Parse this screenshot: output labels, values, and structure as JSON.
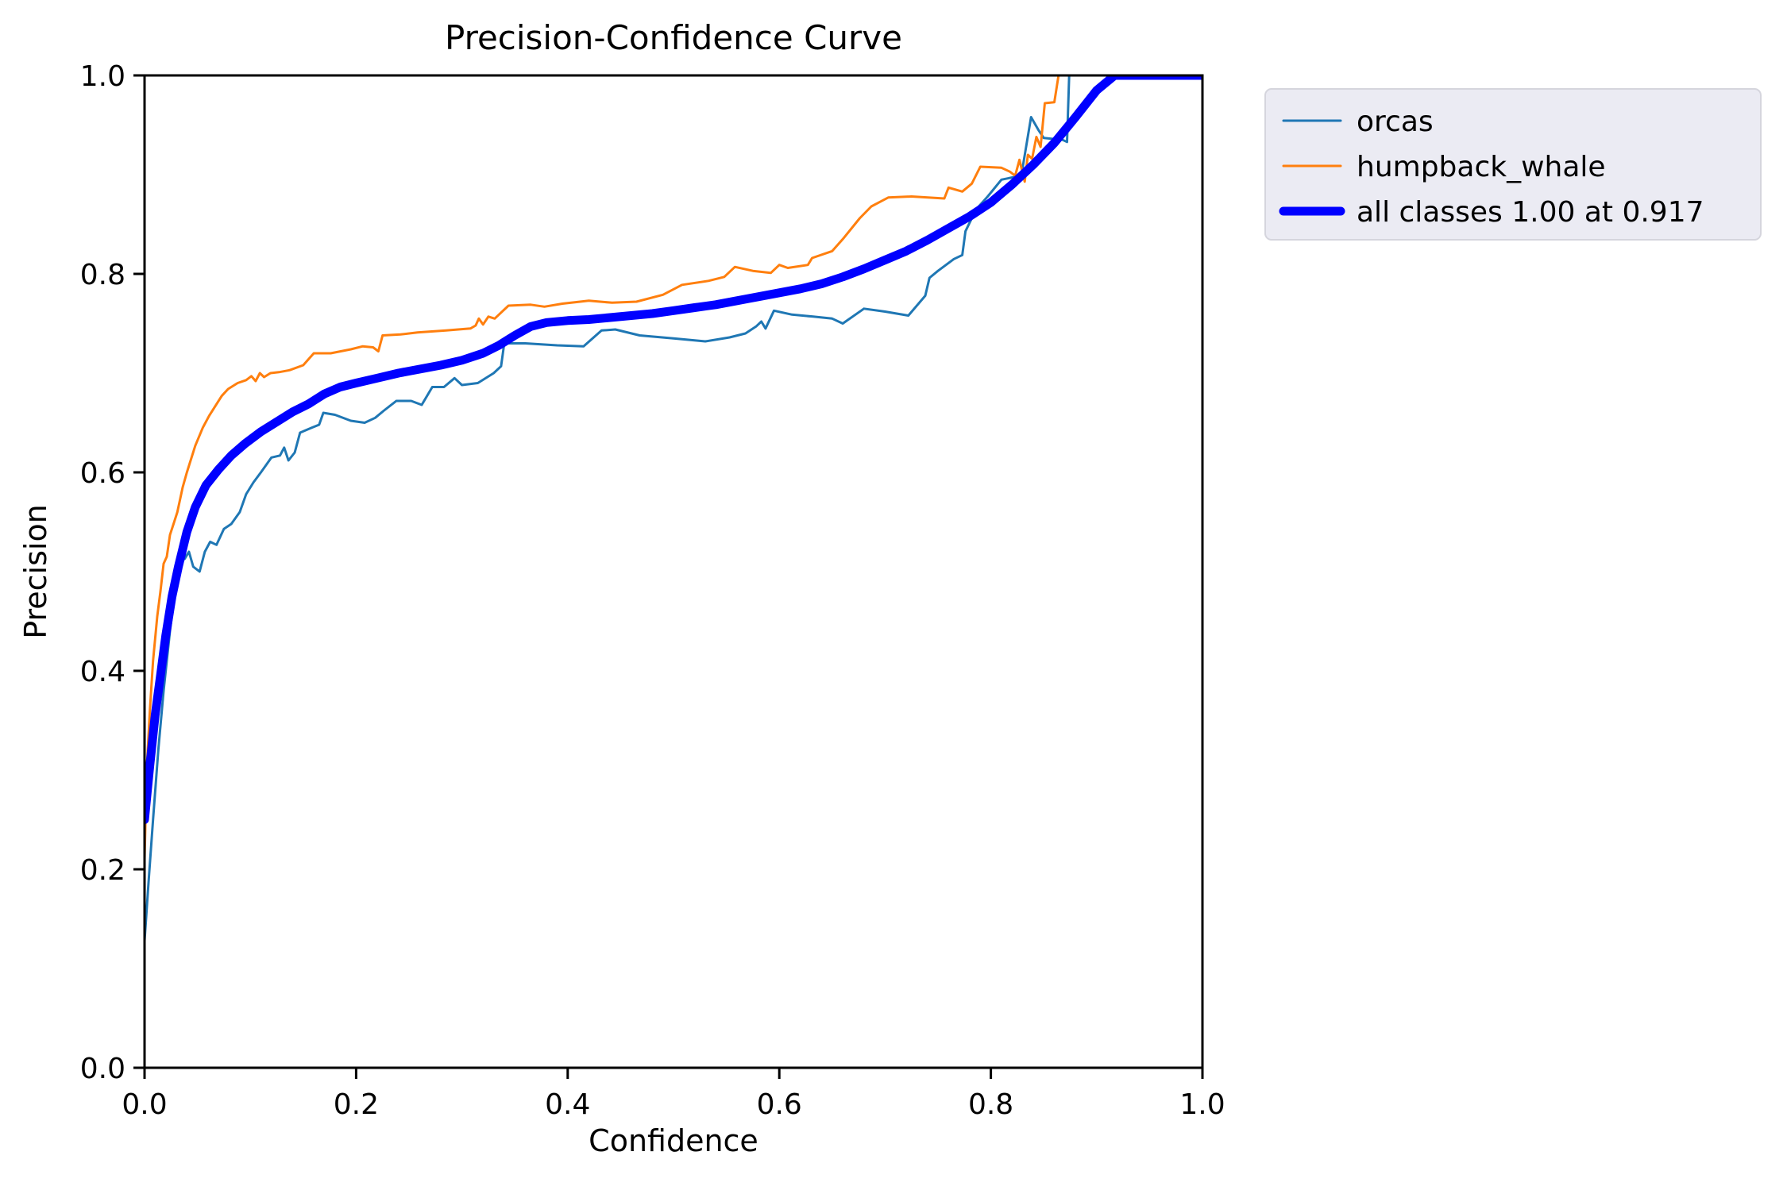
{
  "chart_data": {
    "type": "line",
    "title": "Precision-Confidence Curve",
    "xlabel": "Confidence",
    "ylabel": "Precision",
    "xlim": [
      0.0,
      1.0
    ],
    "ylim": [
      0.0,
      1.0
    ],
    "grid": false,
    "x_tick_values": [
      0.0,
      0.2,
      0.4,
      0.6,
      0.8,
      1.0
    ],
    "x_tick_labels": [
      "0.0",
      "0.2",
      "0.4",
      "0.6",
      "0.8",
      "1.0"
    ],
    "y_tick_values": [
      0.0,
      0.2,
      0.4,
      0.6,
      0.8,
      1.0
    ],
    "y_tick_labels": [
      "0.0",
      "0.2",
      "0.4",
      "0.6",
      "0.8",
      "1.0"
    ],
    "legend_position": "outside-upper-right",
    "legend_bg": "#ebebf3",
    "legend_border": "#d5d5dd",
    "frame_color": "#000000",
    "annotation": "all classes reach precision 1.00 at confidence 0.917",
    "series": [
      {
        "name": "orcas",
        "color": "#1f77b4",
        "line_width": 3,
        "points": [
          [
            0.0,
            0.128
          ],
          [
            0.004,
            0.19
          ],
          [
            0.008,
            0.25
          ],
          [
            0.013,
            0.32
          ],
          [
            0.018,
            0.38
          ],
          [
            0.024,
            0.44
          ],
          [
            0.03,
            0.49
          ],
          [
            0.034,
            0.51
          ],
          [
            0.038,
            0.513
          ],
          [
            0.042,
            0.52
          ],
          [
            0.046,
            0.505
          ],
          [
            0.052,
            0.5
          ],
          [
            0.057,
            0.52
          ],
          [
            0.062,
            0.53
          ],
          [
            0.068,
            0.527
          ],
          [
            0.075,
            0.543
          ],
          [
            0.082,
            0.548
          ],
          [
            0.09,
            0.56
          ],
          [
            0.096,
            0.578
          ],
          [
            0.103,
            0.59
          ],
          [
            0.11,
            0.6
          ],
          [
            0.12,
            0.615
          ],
          [
            0.128,
            0.617
          ],
          [
            0.132,
            0.625
          ],
          [
            0.136,
            0.612
          ],
          [
            0.142,
            0.62
          ],
          [
            0.147,
            0.64
          ],
          [
            0.158,
            0.645
          ],
          [
            0.165,
            0.648
          ],
          [
            0.169,
            0.66
          ],
          [
            0.18,
            0.658
          ],
          [
            0.195,
            0.652
          ],
          [
            0.208,
            0.65
          ],
          [
            0.218,
            0.655
          ],
          [
            0.226,
            0.662
          ],
          [
            0.238,
            0.672
          ],
          [
            0.252,
            0.672
          ],
          [
            0.262,
            0.668
          ],
          [
            0.272,
            0.686
          ],
          [
            0.283,
            0.686
          ],
          [
            0.293,
            0.695
          ],
          [
            0.3,
            0.688
          ],
          [
            0.315,
            0.69
          ],
          [
            0.33,
            0.7
          ],
          [
            0.337,
            0.707
          ],
          [
            0.34,
            0.73
          ],
          [
            0.36,
            0.73
          ],
          [
            0.39,
            0.728
          ],
          [
            0.415,
            0.727
          ],
          [
            0.432,
            0.743
          ],
          [
            0.445,
            0.744
          ],
          [
            0.468,
            0.738
          ],
          [
            0.5,
            0.735
          ],
          [
            0.53,
            0.732
          ],
          [
            0.553,
            0.736
          ],
          [
            0.568,
            0.74
          ],
          [
            0.578,
            0.747
          ],
          [
            0.583,
            0.752
          ],
          [
            0.587,
            0.745
          ],
          [
            0.595,
            0.763
          ],
          [
            0.612,
            0.759
          ],
          [
            0.632,
            0.757
          ],
          [
            0.65,
            0.755
          ],
          [
            0.66,
            0.75
          ],
          [
            0.68,
            0.765
          ],
          [
            0.7,
            0.762
          ],
          [
            0.722,
            0.758
          ],
          [
            0.738,
            0.778
          ],
          [
            0.742,
            0.796
          ],
          [
            0.75,
            0.803
          ],
          [
            0.765,
            0.815
          ],
          [
            0.773,
            0.819
          ],
          [
            0.776,
            0.843
          ],
          [
            0.786,
            0.865
          ],
          [
            0.797,
            0.878
          ],
          [
            0.81,
            0.895
          ],
          [
            0.824,
            0.898
          ],
          [
            0.828,
            0.894
          ],
          [
            0.838,
            0.958
          ],
          [
            0.845,
            0.945
          ],
          [
            0.85,
            0.937
          ],
          [
            0.868,
            0.935
          ],
          [
            0.872,
            0.933
          ],
          [
            0.874,
            1.0
          ],
          [
            1.0,
            1.0
          ]
        ]
      },
      {
        "name": "humpback_whale",
        "color": "#ff7f0e",
        "line_width": 3,
        "points": [
          [
            0.0,
            0.21
          ],
          [
            0.002,
            0.3
          ],
          [
            0.005,
            0.36
          ],
          [
            0.008,
            0.41
          ],
          [
            0.012,
            0.455
          ],
          [
            0.015,
            0.48
          ],
          [
            0.018,
            0.508
          ],
          [
            0.021,
            0.515
          ],
          [
            0.024,
            0.537
          ],
          [
            0.028,
            0.55
          ],
          [
            0.031,
            0.56
          ],
          [
            0.036,
            0.585
          ],
          [
            0.04,
            0.6
          ],
          [
            0.048,
            0.627
          ],
          [
            0.055,
            0.645
          ],
          [
            0.061,
            0.657
          ],
          [
            0.067,
            0.667
          ],
          [
            0.073,
            0.677
          ],
          [
            0.079,
            0.684
          ],
          [
            0.088,
            0.69
          ],
          [
            0.096,
            0.693
          ],
          [
            0.101,
            0.697
          ],
          [
            0.105,
            0.692
          ],
          [
            0.109,
            0.7
          ],
          [
            0.113,
            0.696
          ],
          [
            0.119,
            0.7
          ],
          [
            0.127,
            0.701
          ],
          [
            0.137,
            0.703
          ],
          [
            0.15,
            0.708
          ],
          [
            0.16,
            0.72
          ],
          [
            0.176,
            0.72
          ],
          [
            0.195,
            0.724
          ],
          [
            0.206,
            0.727
          ],
          [
            0.216,
            0.726
          ],
          [
            0.221,
            0.722
          ],
          [
            0.225,
            0.738
          ],
          [
            0.242,
            0.739
          ],
          [
            0.258,
            0.741
          ],
          [
            0.285,
            0.743
          ],
          [
            0.308,
            0.745
          ],
          [
            0.313,
            0.748
          ],
          [
            0.316,
            0.755
          ],
          [
            0.32,
            0.749
          ],
          [
            0.325,
            0.757
          ],
          [
            0.331,
            0.755
          ],
          [
            0.344,
            0.768
          ],
          [
            0.365,
            0.769
          ],
          [
            0.378,
            0.767
          ],
          [
            0.395,
            0.77
          ],
          [
            0.42,
            0.773
          ],
          [
            0.442,
            0.771
          ],
          [
            0.465,
            0.772
          ],
          [
            0.49,
            0.779
          ],
          [
            0.508,
            0.789
          ],
          [
            0.533,
            0.793
          ],
          [
            0.548,
            0.797
          ],
          [
            0.558,
            0.807
          ],
          [
            0.575,
            0.803
          ],
          [
            0.592,
            0.801
          ],
          [
            0.6,
            0.809
          ],
          [
            0.608,
            0.806
          ],
          [
            0.627,
            0.809
          ],
          [
            0.631,
            0.816
          ],
          [
            0.65,
            0.823
          ],
          [
            0.66,
            0.835
          ],
          [
            0.676,
            0.856
          ],
          [
            0.687,
            0.868
          ],
          [
            0.703,
            0.877
          ],
          [
            0.725,
            0.878
          ],
          [
            0.756,
            0.876
          ],
          [
            0.76,
            0.887
          ],
          [
            0.773,
            0.883
          ],
          [
            0.782,
            0.891
          ],
          [
            0.79,
            0.908
          ],
          [
            0.81,
            0.907
          ],
          [
            0.818,
            0.903
          ],
          [
            0.823,
            0.899
          ],
          [
            0.827,
            0.915
          ],
          [
            0.832,
            0.893
          ],
          [
            0.835,
            0.92
          ],
          [
            0.839,
            0.916
          ],
          [
            0.843,
            0.938
          ],
          [
            0.847,
            0.928
          ],
          [
            0.851,
            0.972
          ],
          [
            0.86,
            0.973
          ],
          [
            0.864,
            1.0
          ],
          [
            1.0,
            1.0
          ]
        ]
      },
      {
        "name": "all classes 1.00 at 0.917",
        "color": "#0000ff",
        "line_width": 11,
        "points": [
          [
            0.0,
            0.25
          ],
          [
            0.005,
            0.305
          ],
          [
            0.01,
            0.355
          ],
          [
            0.015,
            0.395
          ],
          [
            0.02,
            0.435
          ],
          [
            0.026,
            0.475
          ],
          [
            0.032,
            0.505
          ],
          [
            0.04,
            0.54
          ],
          [
            0.048,
            0.565
          ],
          [
            0.058,
            0.587
          ],
          [
            0.07,
            0.603
          ],
          [
            0.082,
            0.617
          ],
          [
            0.095,
            0.629
          ],
          [
            0.11,
            0.641
          ],
          [
            0.125,
            0.651
          ],
          [
            0.14,
            0.661
          ],
          [
            0.155,
            0.669
          ],
          [
            0.17,
            0.679
          ],
          [
            0.185,
            0.686
          ],
          [
            0.2,
            0.69
          ],
          [
            0.22,
            0.695
          ],
          [
            0.24,
            0.7
          ],
          [
            0.26,
            0.704
          ],
          [
            0.28,
            0.708
          ],
          [
            0.3,
            0.713
          ],
          [
            0.32,
            0.72
          ],
          [
            0.335,
            0.728
          ],
          [
            0.35,
            0.738
          ],
          [
            0.365,
            0.747
          ],
          [
            0.38,
            0.751
          ],
          [
            0.4,
            0.753
          ],
          [
            0.42,
            0.754
          ],
          [
            0.44,
            0.756
          ],
          [
            0.46,
            0.758
          ],
          [
            0.48,
            0.76
          ],
          [
            0.5,
            0.763
          ],
          [
            0.52,
            0.766
          ],
          [
            0.54,
            0.769
          ],
          [
            0.56,
            0.773
          ],
          [
            0.58,
            0.777
          ],
          [
            0.6,
            0.781
          ],
          [
            0.62,
            0.785
          ],
          [
            0.64,
            0.79
          ],
          [
            0.66,
            0.797
          ],
          [
            0.68,
            0.805
          ],
          [
            0.7,
            0.814
          ],
          [
            0.72,
            0.823
          ],
          [
            0.74,
            0.834
          ],
          [
            0.76,
            0.846
          ],
          [
            0.78,
            0.858
          ],
          [
            0.8,
            0.872
          ],
          [
            0.82,
            0.89
          ],
          [
            0.84,
            0.91
          ],
          [
            0.86,
            0.932
          ],
          [
            0.88,
            0.958
          ],
          [
            0.9,
            0.985
          ],
          [
            0.917,
            1.0
          ],
          [
            1.0,
            1.0
          ]
        ]
      }
    ]
  }
}
